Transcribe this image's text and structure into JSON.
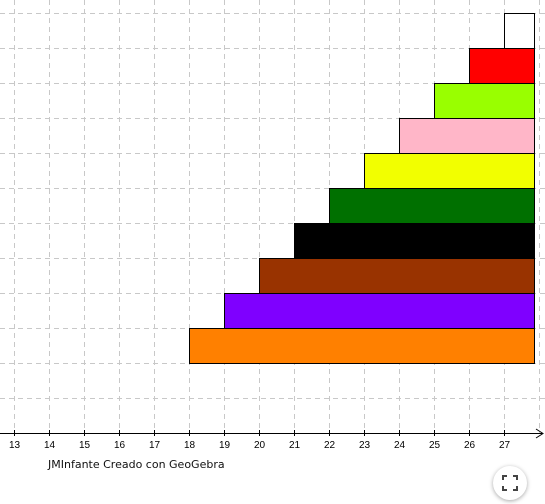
{
  "applet": {
    "credit_text": "JMInfante Creado con GeoGebra",
    "fullscreen_icon": "fullscreen-icon"
  },
  "chart_data": {
    "type": "bar",
    "orientation": "horizontal",
    "x_ticks": [
      "13",
      "14",
      "15",
      "16",
      "17",
      "18",
      "19",
      "20",
      "21",
      "22",
      "23",
      "24",
      "25",
      "26",
      "27"
    ],
    "xlim": [
      12.6,
      28.1
    ],
    "grid": true,
    "bars": [
      {
        "start": 18,
        "end": 28,
        "color": "#ff8000"
      },
      {
        "start": 19,
        "end": 28,
        "color": "#7f00ff"
      },
      {
        "start": 20,
        "end": 28,
        "color": "#993300"
      },
      {
        "start": 21,
        "end": 28,
        "color": "#000000"
      },
      {
        "start": 22,
        "end": 28,
        "color": "#007000"
      },
      {
        "start": 23,
        "end": 28,
        "color": "#f2ff00"
      },
      {
        "start": 24,
        "end": 28,
        "color": "#ffb6c8"
      },
      {
        "start": 25,
        "end": 28,
        "color": "#99ff00"
      },
      {
        "start": 26,
        "end": 28,
        "color": "#ff0000"
      },
      {
        "start": 27,
        "end": 28,
        "color": "#ffffff"
      }
    ]
  }
}
